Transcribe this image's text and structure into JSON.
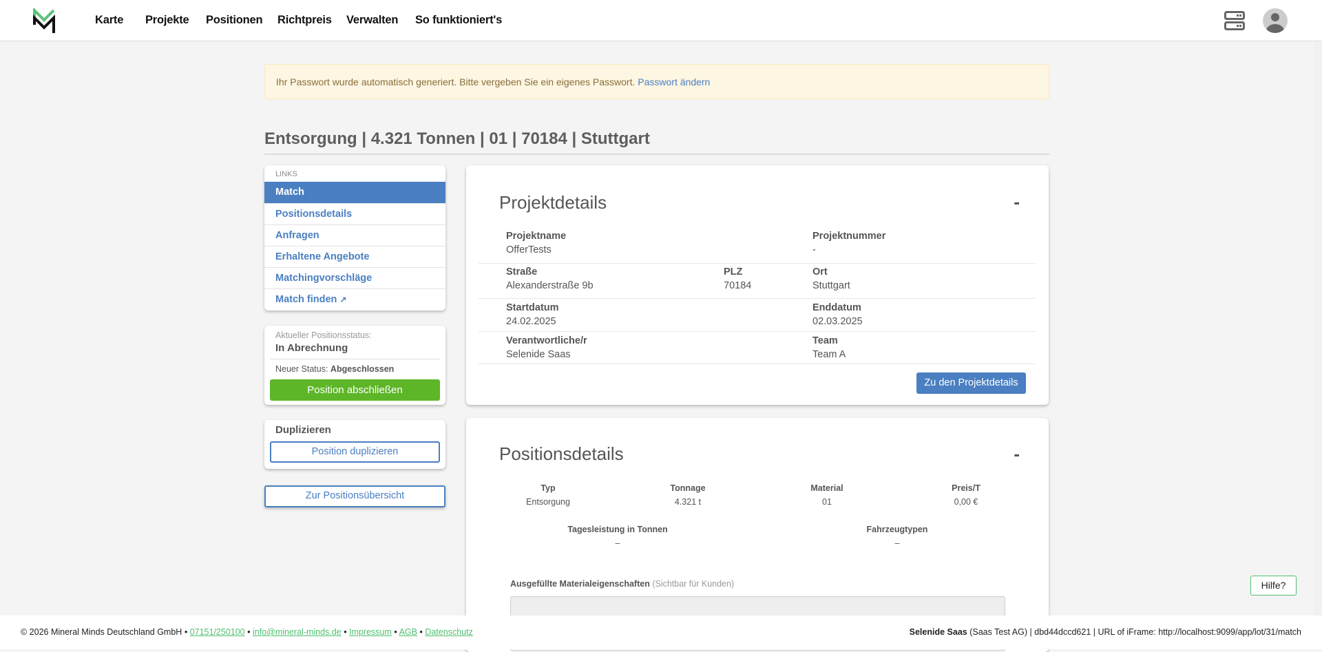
{
  "nav": {
    "items": [
      "Karte",
      "Projekte",
      "Positionen",
      "Richtpreis",
      "Verwalten",
      "So funktioniert's"
    ],
    "brand_color": "#5ec27a"
  },
  "alert": {
    "text": "Ihr Passwort wurde automatisch generiert. Bitte vergeben Sie ein eigenes Passwort.",
    "link": "Passwort ändern"
  },
  "page_title": "Entsorgung | 4.321 Tonnen | 01 | 70184 | Stuttgart",
  "links": {
    "header": "LINKS",
    "items": [
      "Match",
      "Positionsdetails",
      "Anfragen",
      "Erhaltene Angebote",
      "Matchingvorschläge",
      "Match finden"
    ],
    "active": "Match"
  },
  "status": {
    "current_label": "Aktueller Positionsstatus:",
    "current": "In Abrechnung",
    "new_label": "Neuer Status:",
    "new": "Abgeschlossen",
    "button": "Position abschließen"
  },
  "duplicate": {
    "title": "Duplizieren",
    "button": "Position duplizieren"
  },
  "overview_button": "Zur Positionsübersicht",
  "project": {
    "title": "Projektdetails",
    "collapse": "-",
    "fields": {
      "name_l": "Projektname",
      "name_v": "OfferTests",
      "num_l": "Projektnummer",
      "num_v": "-",
      "street_l": "Straße",
      "street_v": "Alexanderstraße 9b",
      "plz_l": "PLZ",
      "plz_v": "70184",
      "ort_l": "Ort",
      "ort_v": "Stuttgart",
      "start_l": "Startdatum",
      "start_v": "24.02.2025",
      "end_l": "Enddatum",
      "end_v": "02.03.2025",
      "resp_l": "Verantwortliche/r",
      "resp_v": "Selenide Saas",
      "team_l": "Team",
      "team_v": "Team A"
    },
    "button": "Zu den Projektdetails"
  },
  "position": {
    "title": "Positionsdetails",
    "collapse": "-",
    "row1": [
      {
        "label": "Typ",
        "value": "Entsorgung"
      },
      {
        "label": "Tonnage",
        "value": "4.321 t"
      },
      {
        "label": "Material",
        "value": "01"
      },
      {
        "label": "Preis/T",
        "value": "0,00 €"
      }
    ],
    "row2": [
      {
        "label": "Tagesleistung in Tonnen",
        "value": "–"
      },
      {
        "label": "Fahrzeugtypen",
        "value": "–"
      }
    ],
    "props_label": "Ausgefüllte Materialeigenschaften",
    "props_hint": "(Sichtbar für Kunden)"
  },
  "footer": {
    "copyright": "© 2026 Mineral Minds Deutschland GmbH",
    "phone": "07151/250100",
    "email": "info@mineral-minds.de",
    "impressum": "Impressum",
    "agb": "AGB",
    "datenschutz": "Datenschutz",
    "sep": "•",
    "user": "Selenide Saas",
    "company": "(Saas Test AG)",
    "info": "| dbd44dccd621 | URL of iFrame: http://localhost:9099/app/lot/31/match"
  },
  "help": "Hilfe?"
}
